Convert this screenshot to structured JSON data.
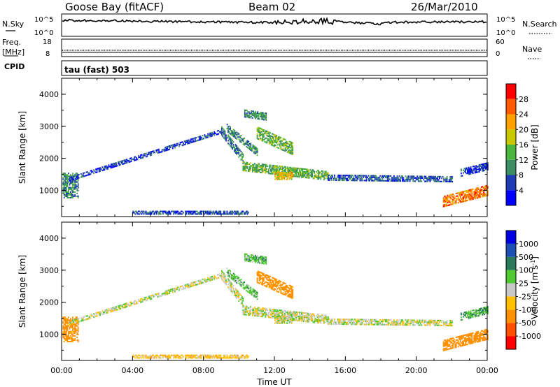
{
  "header": {
    "station": "Goose Bay (fitACF)",
    "beam": "Beam 02",
    "date": "26/Mar/2010"
  },
  "noise_panel": {
    "left_label": "N.Sky",
    "right_label": "N.Search",
    "left_ticks": [
      "10^5",
      "10^0"
    ],
    "right_ticks": [
      "10^5",
      "10^0"
    ]
  },
  "freq_panel": {
    "left_label_1": "Freq.",
    "left_label_2": "[MHz]",
    "right_label": "Nave",
    "left_ticks": [
      "18",
      "8"
    ],
    "right_ticks": [
      "60",
      "0"
    ]
  },
  "cpid": {
    "label": "CPID",
    "text": "tau (fast) 503"
  },
  "time_axis": {
    "label": "Time UT",
    "ticks": [
      "00:00",
      "04:00",
      "08:00",
      "12:00",
      "16:00",
      "20:00",
      "00:00"
    ]
  },
  "legend_colors": {
    "power": [
      "#0000ff",
      "#1e3cb4",
      "#3c8c64",
      "#4ab43c",
      "#c8c800",
      "#ffa000",
      "#ff5a00",
      "#ff0000"
    ],
    "velocity": [
      "#ff0000",
      "#ff5000",
      "#ff9000",
      "#ffc000",
      "#c8c8c8",
      "#50c832",
      "#287a5a",
      "#1e50b4",
      "#0000e0"
    ]
  },
  "chart_data": [
    {
      "type": "heatmap",
      "xlabel": "Time UT",
      "ylabel": "Slant Range [km]",
      "xlim": [
        0,
        24
      ],
      "ylim": [
        180,
        4500
      ],
      "yticks": [
        "1000",
        "2000",
        "3000",
        "4000"
      ],
      "colorbar": {
        "label": "Power [dB]",
        "ticks": [
          "4",
          "8",
          "12",
          "16",
          "20",
          "24",
          "28"
        ],
        "range": [
          0,
          32
        ]
      },
      "bands": [
        {
          "t0": 0.05,
          "t1": 0.9,
          "r0": 750,
          "r1": 1550,
          "level": 10
        },
        {
          "t0": 0.4,
          "t1": 9.0,
          "r_start": 1350,
          "r_end": 2850,
          "thickness": 150,
          "level": 5
        },
        {
          "t0": 9.0,
          "t1": 10.2,
          "r_start": 2850,
          "r_end": 2000,
          "thickness": 300,
          "level": 9
        },
        {
          "t0": 9.3,
          "t1": 11.0,
          "r_start": 2950,
          "r_end": 2200,
          "thickness": 250,
          "level": 10
        },
        {
          "t0": 10.2,
          "t1": 15.0,
          "r_start": 1750,
          "r_end": 1450,
          "thickness": 300,
          "level": 13
        },
        {
          "t0": 15.0,
          "t1": 22.0,
          "r_start": 1400,
          "r_end": 1350,
          "thickness": 200,
          "level": 7
        },
        {
          "t0": 21.5,
          "t1": 24.0,
          "r_start": 650,
          "r_end": 1000,
          "thickness": 350,
          "level": 24
        },
        {
          "t0": 22.5,
          "t1": 24.0,
          "r_start": 1550,
          "r_end": 1750,
          "thickness": 250,
          "level": 5
        },
        {
          "t0": 10.3,
          "t1": 11.5,
          "r_start": 3400,
          "r_end": 3300,
          "thickness": 250,
          "level": 11
        },
        {
          "t0": 11.0,
          "t1": 13.0,
          "r_start": 2800,
          "r_end": 2300,
          "thickness": 400,
          "level": 14
        },
        {
          "t0": 4.0,
          "t1": 10.5,
          "r_start": 300,
          "r_end": 300,
          "thickness": 120,
          "level": 6
        },
        {
          "t0": 12.0,
          "t1": 13.0,
          "r_start": 1450,
          "r_end": 1450,
          "thickness": 250,
          "level": 20
        }
      ]
    },
    {
      "type": "heatmap",
      "xlabel": "Time UT",
      "ylabel": "Slant Range [km]",
      "xlim": [
        0,
        24
      ],
      "ylim": [
        180,
        4500
      ],
      "yticks": [
        "1000",
        "2000",
        "3000",
        "4000"
      ],
      "colorbar": {
        "label": "Velocity [m s^-1]",
        "ticks": [
          "-1000",
          "-500",
          "-100",
          "-25",
          "25",
          "100",
          "500",
          "1000"
        ],
        "range": [
          -1000,
          1000
        ]
      },
      "bands": [
        {
          "t0": 0.05,
          "t1": 0.9,
          "r0": 750,
          "r1": 1550,
          "level": -150
        },
        {
          "t0": 0.4,
          "t1": 9.0,
          "r_start": 1350,
          "r_end": 2850,
          "thickness": 150,
          "level": 0
        },
        {
          "t0": 9.0,
          "t1": 10.2,
          "r_start": 2850,
          "r_end": 2000,
          "thickness": 300,
          "level": 0
        },
        {
          "t0": 9.3,
          "t1": 11.0,
          "r_start": 2950,
          "r_end": 2200,
          "thickness": 250,
          "level": 60
        },
        {
          "t0": 10.2,
          "t1": 15.0,
          "r_start": 1750,
          "r_end": 1450,
          "thickness": 300,
          "level": 0
        },
        {
          "t0": 15.0,
          "t1": 22.0,
          "r_start": 1400,
          "r_end": 1350,
          "thickness": 200,
          "level": 0
        },
        {
          "t0": 21.5,
          "t1": 24.0,
          "r_start": 650,
          "r_end": 1000,
          "thickness": 350,
          "level": -200
        },
        {
          "t0": 22.5,
          "t1": 24.0,
          "r_start": 1550,
          "r_end": 1750,
          "thickness": 250,
          "level": 80
        },
        {
          "t0": 10.3,
          "t1": 11.5,
          "r_start": 3400,
          "r_end": 3300,
          "thickness": 250,
          "level": 70
        },
        {
          "t0": 11.0,
          "t1": 13.0,
          "r_start": 2800,
          "r_end": 2300,
          "thickness": 400,
          "level": -150
        },
        {
          "t0": 4.0,
          "t1": 10.5,
          "r_start": 300,
          "r_end": 300,
          "thickness": 120,
          "level": -60
        },
        {
          "t0": 12.0,
          "t1": 13.0,
          "r_start": 1450,
          "r_end": 1450,
          "thickness": 250,
          "level": 0
        }
      ]
    }
  ]
}
